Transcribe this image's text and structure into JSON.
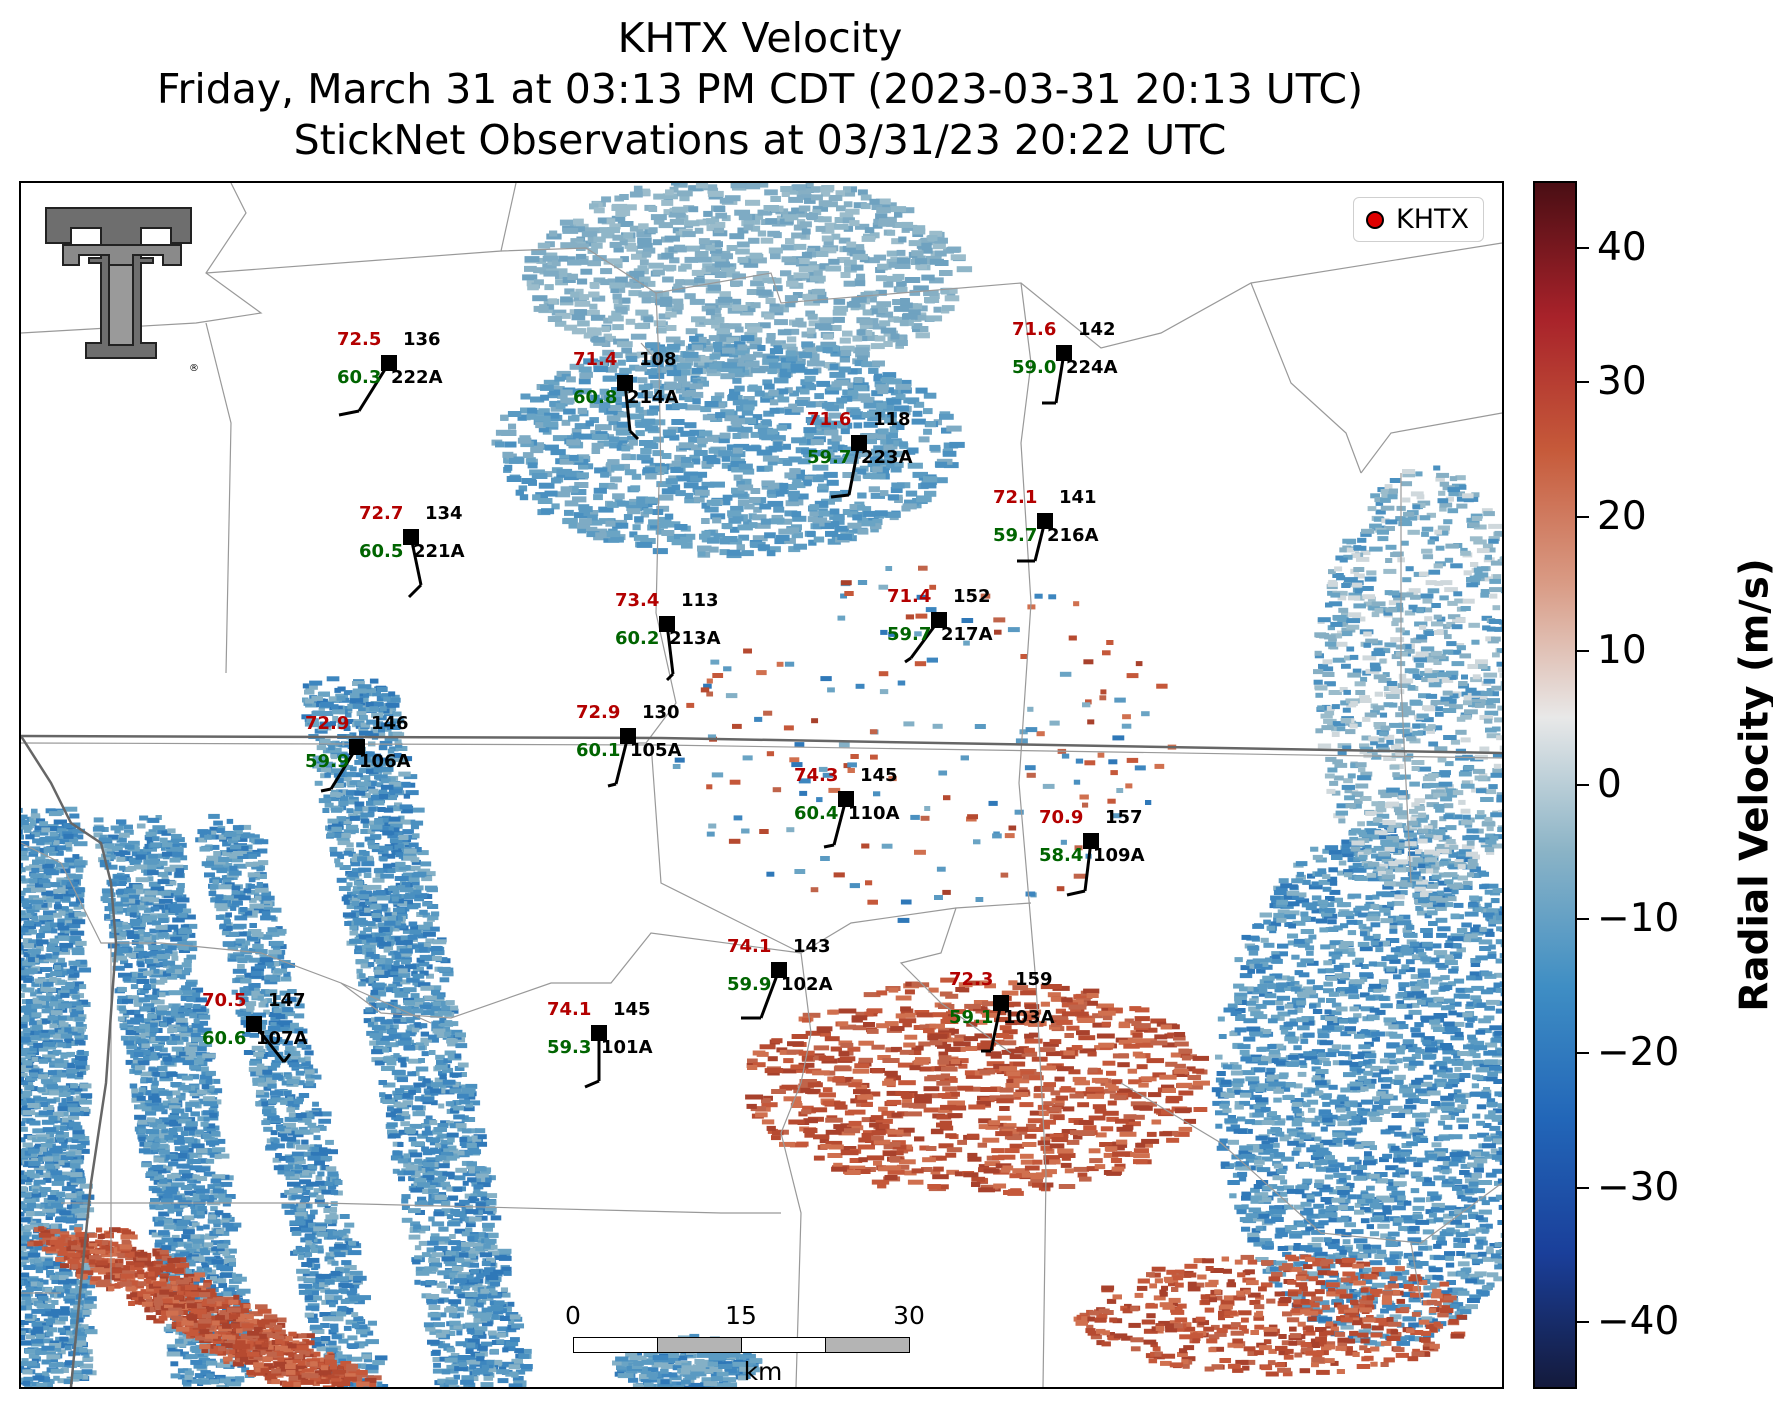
{
  "titles": {
    "line1": "KHTX Velocity",
    "line2": "Friday, March 31 at 03:13 PM CDT (2023-03-31 20:13 UTC)",
    "line3": "StickNet Observations at 03/31/23 20:22 UTC"
  },
  "legend": {
    "label": "KHTX",
    "marker_color": "#e00000"
  },
  "logo": {
    "name": "texas-tech-double-t-logo",
    "text": "®"
  },
  "scalebar": {
    "labels": [
      "0",
      "15",
      "30"
    ],
    "unit": "km"
  },
  "colorbar": {
    "title": "Radial Velocity (m/s)",
    "range": [
      -45,
      45
    ],
    "ticks": [
      "40",
      "30",
      "20",
      "10",
      "0",
      "−10",
      "−20",
      "−30",
      "−40"
    ],
    "tick_values": [
      40,
      30,
      20,
      10,
      0,
      -10,
      -20,
      -30,
      -40
    ],
    "colors": [
      "#141a3c",
      "#1a3f9a",
      "#2266b8",
      "#3f8ec4",
      "#8ab3c6",
      "#e8e8e8",
      "#d99b85",
      "#c65a3a",
      "#a8222a",
      "#4a0e14"
    ]
  },
  "stations": [
    {
      "id": "222A",
      "temp": "72.5",
      "dew": "60.3",
      "pres": "136"
    },
    {
      "id": "214A",
      "temp": "71.4",
      "dew": "60.8",
      "pres": "108"
    },
    {
      "id": "224A",
      "temp": "71.6",
      "dew": "59.0",
      "pres": "142"
    },
    {
      "id": "223A",
      "temp": "71.6",
      "dew": "59.7",
      "pres": "118"
    },
    {
      "id": "221A",
      "temp": "72.7",
      "dew": "60.5",
      "pres": "134"
    },
    {
      "id": "216A",
      "temp": "72.1",
      "dew": "59.7",
      "pres": "141"
    },
    {
      "id": "213A",
      "temp": "73.4",
      "dew": "60.2",
      "pres": "113"
    },
    {
      "id": "217A",
      "temp": "71.4",
      "dew": "59.7",
      "pres": "152"
    },
    {
      "id": "106A",
      "temp": "72.9",
      "dew": "59.9",
      "pres": "146"
    },
    {
      "id": "105A",
      "temp": "72.9",
      "dew": "60.1",
      "pres": "130"
    },
    {
      "id": "110A",
      "temp": "74.3",
      "dew": "60.4",
      "pres": "145"
    },
    {
      "id": "109A",
      "temp": "70.9",
      "dew": "58.4",
      "pres": "157"
    },
    {
      "id": "102A",
      "temp": "74.1",
      "dew": "59.9",
      "pres": "143"
    },
    {
      "id": "103A",
      "temp": "72.3",
      "dew": "59.1",
      "pres": "159"
    },
    {
      "id": "107A",
      "temp": "70.5",
      "dew": "60.6",
      "pres": "147"
    },
    {
      "id": "101A",
      "temp": "74.1",
      "dew": "59.3",
      "pres": "145"
    }
  ]
}
